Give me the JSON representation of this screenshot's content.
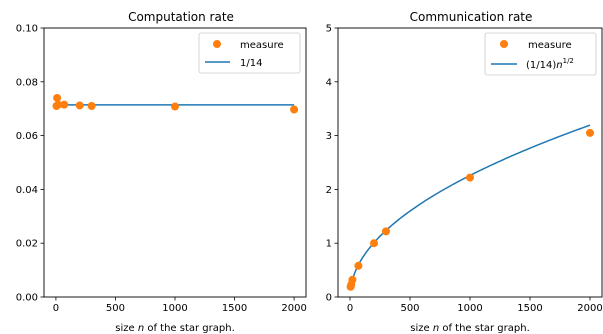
{
  "colors": {
    "measure": "#ff7f0e",
    "fit": "#1f77b4"
  },
  "chart_data": [
    {
      "type": "scatter",
      "title": "Computation rate",
      "xlabel_prefix": "size ",
      "xlabel_var": "n",
      "xlabel_suffix": " of the star graph.",
      "ylabel": "",
      "xlim": [
        -100,
        2100
      ],
      "ylim": [
        0,
        0.1
      ],
      "xticks": [
        0,
        500,
        1000,
        1500,
        2000
      ],
      "yticks": [
        0.0,
        0.02,
        0.04,
        0.06,
        0.08,
        0.1
      ],
      "ytick_labels": [
        "0.00",
        "0.02",
        "0.04",
        "0.06",
        "0.08",
        "0.10"
      ],
      "legend": {
        "position": "top-right",
        "measure_label": "measure",
        "fit_label": "1/14"
      },
      "measure": {
        "x": [
          5,
          10,
          20,
          70,
          200,
          300,
          1000,
          2000
        ],
        "y": [
          0.071,
          0.074,
          0.0715,
          0.0715,
          0.0712,
          0.071,
          0.0708,
          0.0697
        ]
      },
      "fit": {
        "formula": "1/14",
        "x_range": [
          5,
          2000
        ]
      }
    },
    {
      "type": "scatter",
      "title": "Communication rate",
      "xlabel_prefix": "size ",
      "xlabel_var": "n",
      "xlabel_suffix": " of the star graph.",
      "ylabel": "",
      "xlim": [
        -100,
        2100
      ],
      "ylim": [
        0,
        5
      ],
      "xticks": [
        0,
        500,
        1000,
        1500,
        2000
      ],
      "yticks": [
        0,
        1,
        2,
        3,
        4,
        5
      ],
      "ytick_labels": [
        "0",
        "1",
        "2",
        "3",
        "4",
        "5"
      ],
      "legend": {
        "position": "top-right",
        "measure_label": "measure",
        "fit_label_base": "(1/14)",
        "fit_label_var": "n",
        "fit_label_exp": "1/2"
      },
      "measure": {
        "x": [
          5,
          10,
          20,
          70,
          200,
          300,
          1000,
          2000
        ],
        "y": [
          0.19,
          0.23,
          0.32,
          0.58,
          1.0,
          1.22,
          2.22,
          3.05
        ]
      },
      "fit": {
        "formula": "(1/14)*sqrt(n)",
        "x_range": [
          5,
          2000
        ]
      }
    }
  ]
}
